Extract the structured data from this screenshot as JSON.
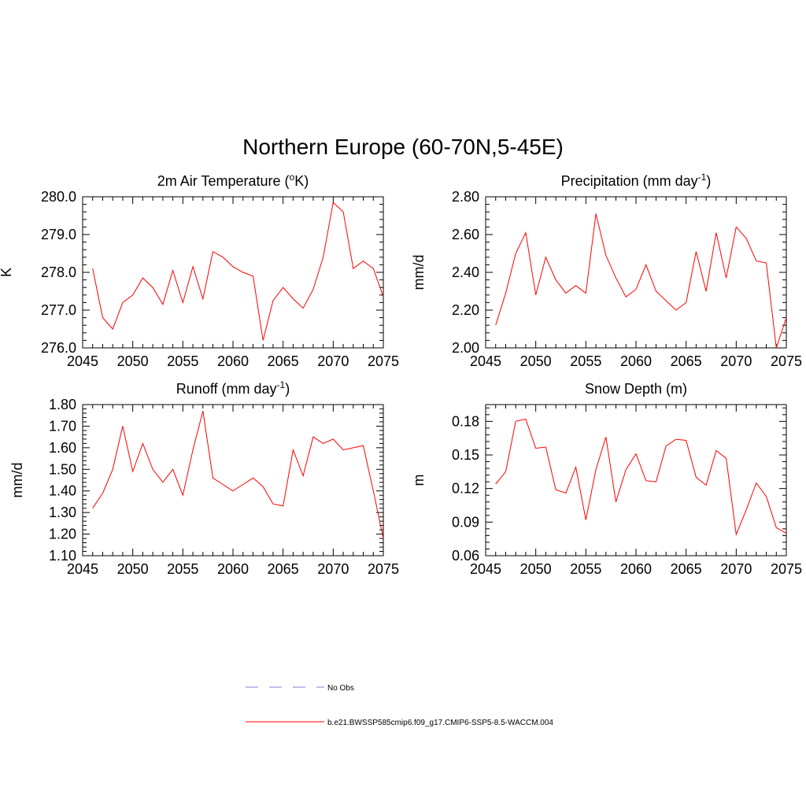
{
  "title": "Northern Europe (60-70N,5-45E)",
  "legend": [
    {
      "label": "No Obs",
      "color": "#9999dd",
      "dash": true
    },
    {
      "label": "b.e21.BWSSP585cmip6.f09_g17.CMIP6-SSP5-8.5-WACCM.004",
      "color": "#ff0000",
      "dash": false
    }
  ],
  "chart_data": [
    {
      "type": "line",
      "title_main": "2m Air Temperature (",
      "title_sup": "o",
      "title_end": "K)",
      "ylabel": "K",
      "xlim": [
        2045,
        2075
      ],
      "ylim": [
        276.0,
        280.0
      ],
      "xticks": [
        "2045",
        "2050",
        "2055",
        "2060",
        "2065",
        "2070",
        "2075"
      ],
      "yticks": [
        "276.0",
        "277.0",
        "278.0",
        "279.0",
        "280.0"
      ],
      "series": [
        {
          "name": "b.e21.BWSSP585cmip6.f09_g17.CMIP6-SSP5-8.5-WACCM.004",
          "color": "#ff0000",
          "x": [
            2046,
            2047,
            2048,
            2049,
            2050,
            2051,
            2052,
            2053,
            2054,
            2055,
            2056,
            2057,
            2058,
            2059,
            2060,
            2061,
            2062,
            2063,
            2064,
            2065,
            2066,
            2067,
            2068,
            2069,
            2070,
            2071,
            2072,
            2073,
            2074,
            2075
          ],
          "y": [
            278.1,
            276.8,
            276.5,
            277.2,
            277.4,
            277.85,
            277.6,
            277.15,
            278.05,
            277.2,
            278.15,
            277.3,
            278.55,
            278.4,
            278.15,
            278.0,
            277.9,
            276.2,
            277.25,
            277.6,
            277.3,
            277.05,
            277.55,
            278.4,
            279.85,
            279.6,
            278.1,
            278.3,
            278.1,
            277.35
          ]
        }
      ]
    },
    {
      "type": "line",
      "title_main": "Precipitation (mm day",
      "title_sup": "-1",
      "title_end": ")",
      "ylabel": "mm/d",
      "xlim": [
        2045,
        2075
      ],
      "ylim": [
        2.0,
        2.8
      ],
      "xticks": [
        "2045",
        "2050",
        "2055",
        "2060",
        "2065",
        "2070",
        "2075"
      ],
      "yticks": [
        "2.00",
        "2.20",
        "2.40",
        "2.60",
        "2.80"
      ],
      "series": [
        {
          "name": "b.e21.BWSSP585cmip6.f09_g17.CMIP6-SSP5-8.5-WACCM.004",
          "color": "#ff0000",
          "x": [
            2046,
            2047,
            2048,
            2049,
            2050,
            2051,
            2052,
            2053,
            2054,
            2055,
            2056,
            2057,
            2058,
            2059,
            2060,
            2061,
            2062,
            2063,
            2064,
            2065,
            2066,
            2067,
            2068,
            2069,
            2070,
            2071,
            2072,
            2073,
            2074,
            2075
          ],
          "y": [
            2.12,
            2.29,
            2.5,
            2.61,
            2.28,
            2.48,
            2.36,
            2.29,
            2.33,
            2.29,
            2.71,
            2.49,
            2.37,
            2.27,
            2.31,
            2.44,
            2.3,
            2.25,
            2.2,
            2.24,
            2.51,
            2.3,
            2.61,
            2.37,
            2.64,
            2.58,
            2.46,
            2.45,
            2.0,
            2.16
          ]
        }
      ]
    },
    {
      "type": "line",
      "title_main": "Runoff (mm day",
      "title_sup": "-1",
      "title_end": ")",
      "ylabel": "mm/d",
      "xlim": [
        2045,
        2075
      ],
      "ylim": [
        1.1,
        1.8
      ],
      "xticks": [
        "2045",
        "2050",
        "2055",
        "2060",
        "2065",
        "2070",
        "2075"
      ],
      "yticks": [
        "1.10",
        "1.20",
        "1.30",
        "1.40",
        "1.50",
        "1.60",
        "1.70",
        "1.80"
      ],
      "series": [
        {
          "name": "b.e21.BWSSP585cmip6.f09_g17.CMIP6-SSP5-8.5-WACCM.004",
          "color": "#ff0000",
          "x": [
            2046,
            2047,
            2048,
            2049,
            2050,
            2051,
            2052,
            2053,
            2054,
            2055,
            2056,
            2057,
            2058,
            2059,
            2060,
            2061,
            2062,
            2063,
            2064,
            2065,
            2066,
            2067,
            2068,
            2069,
            2070,
            2071,
            2072,
            2073,
            2074,
            2075
          ],
          "y": [
            1.32,
            1.39,
            1.5,
            1.7,
            1.49,
            1.62,
            1.5,
            1.44,
            1.5,
            1.38,
            1.59,
            1.77,
            1.46,
            1.43,
            1.4,
            1.43,
            1.46,
            1.42,
            1.34,
            1.33,
            1.59,
            1.47,
            1.65,
            1.62,
            1.64,
            1.59,
            1.6,
            1.61,
            1.4,
            1.18
          ]
        }
      ]
    },
    {
      "type": "line",
      "title_main": "Snow Depth (m)",
      "title_sup": "",
      "title_end": "",
      "ylabel": "m",
      "xlim": [
        2045,
        2075
      ],
      "ylim": [
        0.06,
        0.195
      ],
      "xticks": [
        "2045",
        "2050",
        "2055",
        "2060",
        "2065",
        "2070",
        "2075"
      ],
      "yticks": [
        "0.06",
        "0.09",
        "0.12",
        "0.15",
        "0.18"
      ],
      "series": [
        {
          "name": "b.e21.BWSSP585cmip6.f09_g17.CMIP6-SSP5-8.5-WACCM.004",
          "color": "#ff0000",
          "x": [
            2046,
            2047,
            2048,
            2049,
            2050,
            2051,
            2052,
            2053,
            2054,
            2055,
            2056,
            2057,
            2058,
            2059,
            2060,
            2061,
            2062,
            2063,
            2064,
            2065,
            2066,
            2067,
            2068,
            2069,
            2070,
            2071,
            2072,
            2073,
            2074,
            2075
          ],
          "y": [
            0.124,
            0.135,
            0.18,
            0.182,
            0.156,
            0.157,
            0.119,
            0.116,
            0.139,
            0.092,
            0.137,
            0.166,
            0.108,
            0.137,
            0.151,
            0.127,
            0.126,
            0.158,
            0.164,
            0.163,
            0.13,
            0.123,
            0.154,
            0.147,
            0.079,
            0.101,
            0.125,
            0.113,
            0.085,
            0.08
          ]
        }
      ]
    }
  ]
}
